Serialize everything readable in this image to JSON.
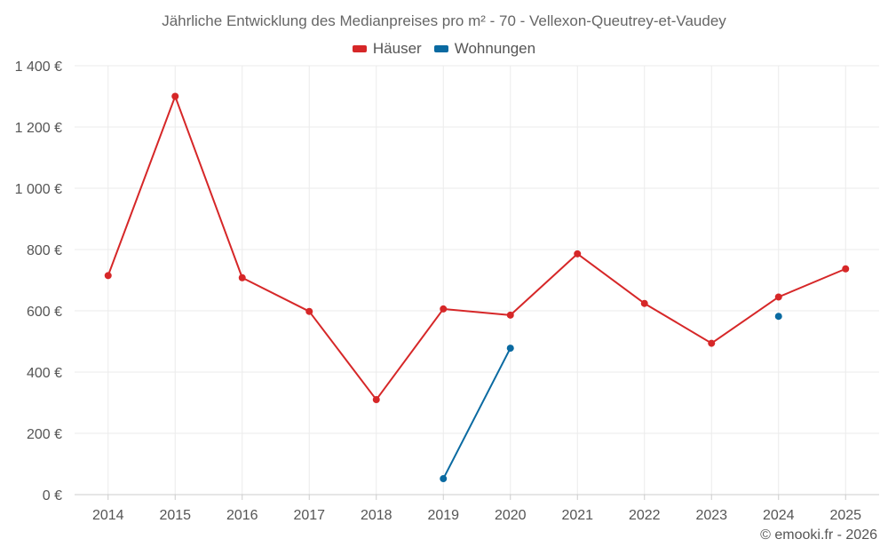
{
  "chart_data": {
    "type": "line",
    "title": "Jährliche Entwicklung des Medianpreises pro m² - 70 - Vellexon-Queutrey-et-Vaudey",
    "xlabel": "",
    "ylabel": "",
    "categories": [
      "2014",
      "2015",
      "2016",
      "2017",
      "2018",
      "2019",
      "2020",
      "2021",
      "2022",
      "2023",
      "2024",
      "2025"
    ],
    "ylim": [
      0,
      1400
    ],
    "yticks": [
      0,
      200,
      400,
      600,
      800,
      1000,
      1200,
      1400
    ],
    "ytick_labels": [
      "0 €",
      "200 €",
      "400 €",
      "600 €",
      "800 €",
      "1 000 €",
      "1 200 €",
      "1 400 €"
    ],
    "grid": true,
    "legend_position": "top-center",
    "series": [
      {
        "name": "Häuser",
        "color": "#d62728",
        "values": [
          715,
          1300,
          708,
          598,
          310,
          606,
          586,
          786,
          624,
          494,
          645,
          737
        ]
      },
      {
        "name": "Wohnungen",
        "color": "#0a6aa1",
        "values": [
          null,
          null,
          null,
          null,
          null,
          52,
          478,
          null,
          null,
          null,
          582,
          null
        ]
      }
    ]
  },
  "credit": "© emooki.fr - 2026"
}
